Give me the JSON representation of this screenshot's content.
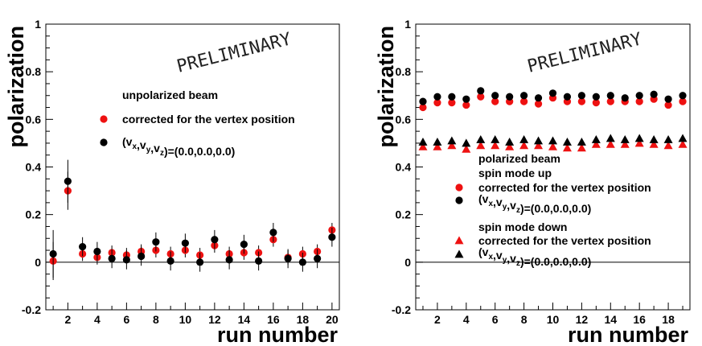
{
  "chart_data": [
    {
      "type": "scatter",
      "xlabel": "run number",
      "ylabel": "polarization",
      "xlim": [
        0.5,
        20.5
      ],
      "ylim": [
        -0.2,
        1.0
      ],
      "xticks": [
        2,
        4,
        6,
        8,
        10,
        12,
        14,
        16,
        18,
        20
      ],
      "yticks": [
        -0.2,
        0,
        0.2,
        0.4,
        0.6,
        0.8,
        1
      ],
      "watermark": "PRELIMINARY",
      "legend": {
        "title": "unpolarized beam",
        "entries": [
          {
            "label": "corrected for the vertex position",
            "marker": "circle",
            "color": "#ee1111"
          },
          {
            "label_main": "(v",
            "label_sub": [
              "x",
              "y",
              "z"
            ],
            "label_tail": ")=(0.0,0.0,0.0)",
            "label": "(v_x,v_y,v_z)=(0.0,0.0,0.0)",
            "marker": "circle",
            "color": "#000000"
          }
        ]
      },
      "series": [
        {
          "name": "corrected for the vertex position",
          "marker": "circle",
          "color": "#ee1111",
          "x": [
            1,
            2,
            3,
            4,
            5,
            6,
            7,
            8,
            9,
            10,
            11,
            12,
            13,
            14,
            15,
            16,
            17,
            18,
            19,
            20
          ],
          "y": [
            0.005,
            0.3,
            0.035,
            0.02,
            0.04,
            0.03,
            0.045,
            0.05,
            0.035,
            0.05,
            0.03,
            0.07,
            0.035,
            0.04,
            0.04,
            0.095,
            0.02,
            0.035,
            0.045,
            0.135
          ],
          "err": [
            0.08,
            0.08,
            0.03,
            0.03,
            0.03,
            0.03,
            0.03,
            0.03,
            0.03,
            0.03,
            0.03,
            0.03,
            0.03,
            0.03,
            0.03,
            0.03,
            0.03,
            0.03,
            0.03,
            0.03
          ]
        },
        {
          "name": "(v_x,v_y,v_z)=(0.0,0.0,0.0)",
          "marker": "circle",
          "color": "#000000",
          "x": [
            1,
            2,
            3,
            4,
            5,
            6,
            7,
            8,
            9,
            10,
            11,
            12,
            13,
            14,
            15,
            16,
            17,
            18,
            19,
            20
          ],
          "y": [
            0.035,
            0.34,
            0.065,
            0.045,
            0.015,
            0.01,
            0.025,
            0.085,
            0.005,
            0.08,
            0.0,
            0.095,
            0.01,
            0.075,
            0.005,
            0.125,
            0.015,
            0.0,
            0.015,
            0.105
          ],
          "err": [
            0.1,
            0.09,
            0.04,
            0.04,
            0.04,
            0.04,
            0.04,
            0.04,
            0.04,
            0.04,
            0.04,
            0.04,
            0.04,
            0.04,
            0.04,
            0.04,
            0.04,
            0.04,
            0.04,
            0.04
          ]
        }
      ]
    },
    {
      "type": "scatter",
      "xlabel": "run number",
      "ylabel": "polarization",
      "xlim": [
        0.5,
        19.5
      ],
      "ylim": [
        -0.2,
        1.0
      ],
      "xticks": [
        2,
        4,
        6,
        8,
        10,
        12,
        14,
        16,
        18
      ],
      "yticks": [
        -0.2,
        0,
        0.2,
        0.4,
        0.6,
        0.8,
        1
      ],
      "watermark": "PRELIMINARY",
      "legend": {
        "title": "polarized beam",
        "subtitle_up": "spin mode up",
        "subtitle_down": "spin mode down",
        "entries": [
          {
            "label": "corrected for the vertex position",
            "marker": "circle",
            "color": "#ee1111"
          },
          {
            "label_main": "(v",
            "label_sub": [
              "x",
              "y",
              "z"
            ],
            "label_tail": ")=(0.0,0.0,0.0)",
            "label": "(v_x,v_y,v_z)=(0.0,0.0,0.0)",
            "marker": "circle",
            "color": "#000000"
          },
          {
            "label": "corrected for the vertex position",
            "marker": "triangle",
            "color": "#ee1111"
          },
          {
            "label_main": "(v",
            "label_sub": [
              "x",
              "y",
              "z"
            ],
            "label_tail": ")=(0.0,0.0,0.0)",
            "label": "(v_x,v_y,v_z)=(0.0,0.0,0.0)",
            "marker": "triangle",
            "color": "#000000"
          }
        ]
      },
      "series": [
        {
          "name": "spin mode up, corrected for the vertex position",
          "marker": "circle",
          "color": "#ee1111",
          "x": [
            1,
            2,
            3,
            4,
            5,
            6,
            7,
            8,
            9,
            10,
            11,
            12,
            13,
            14,
            15,
            16,
            17,
            18,
            19
          ],
          "y": [
            0.65,
            0.67,
            0.67,
            0.66,
            0.695,
            0.675,
            0.675,
            0.675,
            0.665,
            0.69,
            0.675,
            0.675,
            0.67,
            0.675,
            0.675,
            0.675,
            0.685,
            0.66,
            0.675
          ]
        },
        {
          "name": "spin mode up, (v_x,v_y,v_z)=(0.0,0.0,0.0)",
          "marker": "circle",
          "color": "#000000",
          "x": [
            1,
            2,
            3,
            4,
            5,
            6,
            7,
            8,
            9,
            10,
            11,
            12,
            13,
            14,
            15,
            16,
            17,
            18,
            19
          ],
          "y": [
            0.675,
            0.695,
            0.695,
            0.685,
            0.72,
            0.7,
            0.695,
            0.7,
            0.69,
            0.71,
            0.695,
            0.7,
            0.695,
            0.7,
            0.69,
            0.7,
            0.705,
            0.685,
            0.7
          ]
        },
        {
          "name": "spin mode down, corrected for the vertex position",
          "marker": "triangle",
          "color": "#ee1111",
          "x": [
            1,
            2,
            3,
            4,
            5,
            6,
            7,
            8,
            9,
            10,
            11,
            12,
            13,
            14,
            15,
            16,
            17,
            18,
            19
          ],
          "y": [
            0.485,
            0.485,
            0.49,
            0.475,
            0.49,
            0.49,
            0.485,
            0.49,
            0.49,
            0.485,
            0.48,
            0.48,
            0.495,
            0.495,
            0.495,
            0.5,
            0.495,
            0.49,
            0.495
          ]
        },
        {
          "name": "spin mode down, (v_x,v_y,v_z)=(0.0,0.0,0.0)",
          "marker": "triangle",
          "color": "#000000",
          "x": [
            1,
            2,
            3,
            4,
            5,
            6,
            7,
            8,
            9,
            10,
            11,
            12,
            13,
            14,
            15,
            16,
            17,
            18,
            19
          ],
          "y": [
            0.505,
            0.505,
            0.51,
            0.5,
            0.515,
            0.515,
            0.505,
            0.515,
            0.51,
            0.51,
            0.505,
            0.505,
            0.515,
            0.52,
            0.515,
            0.52,
            0.515,
            0.515,
            0.52
          ]
        }
      ]
    }
  ]
}
